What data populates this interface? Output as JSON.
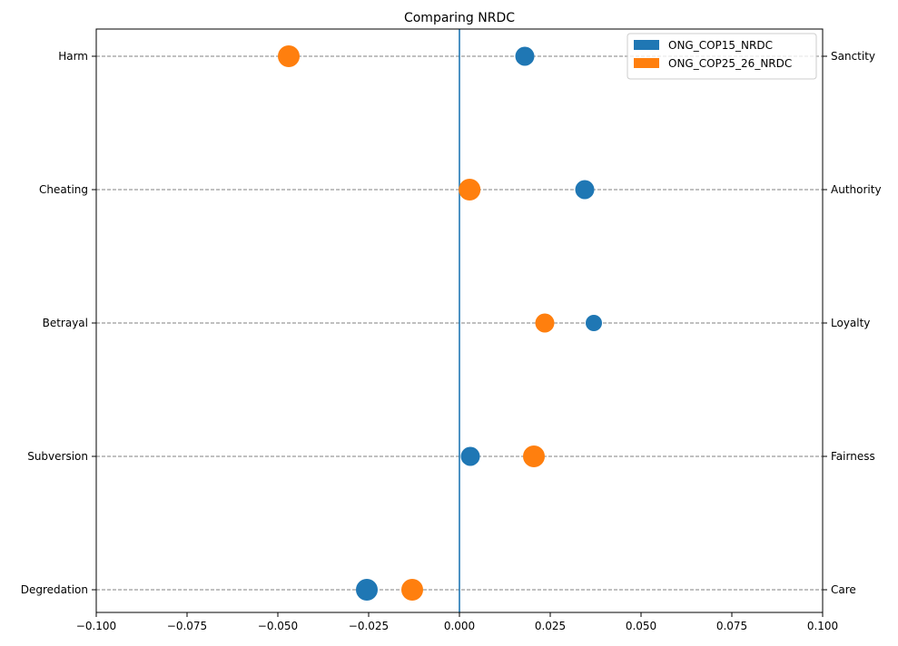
{
  "chart_data": {
    "type": "scatter",
    "title": "Comparing NRDC",
    "xlabel": "",
    "ylabel": "",
    "xlim": [
      -0.1,
      0.1
    ],
    "xticks": [
      "−0.100",
      "−0.075",
      "−0.050",
      "−0.025",
      "0.000",
      "0.025",
      "0.050",
      "0.075",
      "0.100"
    ],
    "xtick_values": [
      -0.1,
      -0.075,
      -0.05,
      -0.025,
      0.0,
      0.025,
      0.05,
      0.075,
      0.1
    ],
    "left_categories": [
      "Harm",
      "Cheating",
      "Betrayal",
      "Subversion",
      "Degredation"
    ],
    "right_categories": [
      "Sanctity",
      "Authority",
      "Loyalty",
      "Fairness",
      "Care"
    ],
    "zero_line": 0.0,
    "grid": "horizontal-dashed",
    "legend_position": "top-right",
    "series": [
      {
        "name": "ONG_COP15_NRDC",
        "color": "#1f77b4",
        "points": [
          {
            "category": "Harm",
            "x": 0.018,
            "size": "medium"
          },
          {
            "category": "Cheating",
            "x": 0.0345,
            "size": "medium"
          },
          {
            "category": "Betrayal",
            "x": 0.037,
            "size": "small"
          },
          {
            "category": "Subversion",
            "x": 0.003,
            "size": "medium"
          },
          {
            "category": "Degredation",
            "x": -0.0255,
            "size": "large"
          }
        ]
      },
      {
        "name": "ONG_COP25_26_NRDC",
        "color": "#ff7f0e",
        "points": [
          {
            "category": "Harm",
            "x": -0.047,
            "size": "large"
          },
          {
            "category": "Cheating",
            "x": 0.0028,
            "size": "large"
          },
          {
            "category": "Betrayal",
            "x": 0.0235,
            "size": "medium"
          },
          {
            "category": "Subversion",
            "x": 0.0205,
            "size": "large"
          },
          {
            "category": "Degredation",
            "x": -0.013,
            "size": "large"
          }
        ]
      }
    ]
  }
}
